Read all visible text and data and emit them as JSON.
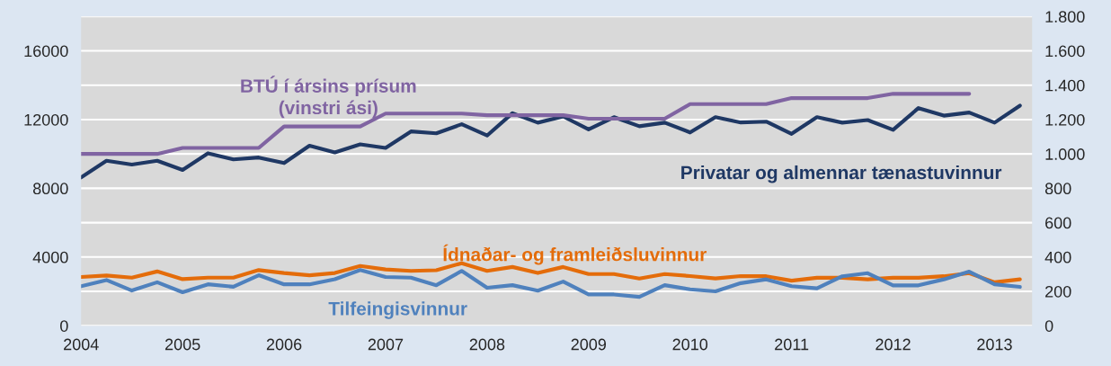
{
  "chart_data": {
    "type": "line",
    "x": [
      2004,
      2004.25,
      2004.5,
      2004.75,
      2005,
      2005.25,
      2005.5,
      2005.75,
      2006,
      2006.25,
      2006.5,
      2006.75,
      2007,
      2007.25,
      2007.5,
      2007.75,
      2008,
      2008.25,
      2008.5,
      2008.75,
      2009,
      2009.25,
      2009.5,
      2009.75,
      2010,
      2010.25,
      2010.5,
      2010.75,
      2011,
      2011.25,
      2011.5,
      2011.75,
      2012,
      2012.25,
      2012.5,
      2012.75,
      2013,
      2013.25
    ],
    "series": [
      {
        "name": "BTÚ í ársins prísum\n(vinstri ási)",
        "color": "#8064a2",
        "axis": "y",
        "x": [
          2004,
          2004.25,
          2004.5,
          2004.75,
          2005,
          2005.25,
          2005.5,
          2005.75,
          2006,
          2006.25,
          2006.5,
          2006.75,
          2007,
          2007.25,
          2007.5,
          2007.75,
          2008,
          2008.25,
          2008.5,
          2008.75,
          2009,
          2009.25,
          2009.5,
          2009.75,
          2010,
          2010.25,
          2010.5,
          2010.75,
          2011,
          2011.25,
          2011.5,
          2011.75,
          2012,
          2012.25,
          2012.5,
          2012.75
        ],
        "values": [
          10000,
          10000,
          10000,
          10000,
          10350,
          10350,
          10350,
          10350,
          11600,
          11600,
          11600,
          11600,
          12350,
          12350,
          12350,
          12350,
          12250,
          12250,
          12250,
          12250,
          12050,
          12050,
          12050,
          12050,
          12900,
          12900,
          12900,
          12900,
          13250,
          13250,
          13250,
          13250,
          13500,
          13500,
          13500,
          13500
        ]
      },
      {
        "name": "Privatar og almennar tænastuvinnur",
        "color": "#1f3864",
        "axis": "y2",
        "values": [
          863,
          960,
          938,
          960,
          907,
          1004,
          968,
          979,
          947,
          1048,
          1009,
          1056,
          1035,
          1131,
          1120,
          1173,
          1107,
          1237,
          1182,
          1218,
          1143,
          1214,
          1161,
          1182,
          1125,
          1214,
          1183,
          1188,
          1117,
          1214,
          1182,
          1197,
          1140,
          1267,
          1223,
          1241,
          1182,
          1281
        ]
      },
      {
        "name": "Ídnaðar- og framleiðsluvinnur",
        "color": "#e46c0a",
        "axis": "y2",
        "values": [
          284,
          292,
          280,
          316,
          271,
          280,
          280,
          324,
          307,
          294,
          307,
          348,
          328,
          319,
          323,
          364,
          319,
          342,
          307,
          342,
          301,
          301,
          275,
          301,
          289,
          275,
          289,
          288,
          262,
          279,
          279,
          270,
          279,
          279,
          288,
          306,
          253,
          270
        ]
      },
      {
        "name": "Tilfeingisvinnur",
        "color": "#4f81bd",
        "axis": "y2",
        "values": [
          230,
          266,
          205,
          253,
          195,
          241,
          227,
          294,
          241,
          241,
          271,
          324,
          284,
          280,
          236,
          319,
          221,
          236,
          204,
          257,
          182,
          182,
          168,
          236,
          212,
          200,
          248,
          270,
          230,
          218,
          288,
          306,
          235,
          235,
          270,
          315,
          241,
          226
        ]
      }
    ],
    "xlim": [
      2004,
      2013.37
    ],
    "xticks": [
      2004,
      2005,
      2006,
      2007,
      2008,
      2009,
      2010,
      2011,
      2012,
      2013
    ],
    "ylim": [
      0,
      18000
    ],
    "yticks": [
      0,
      4000,
      8000,
      12000,
      16000
    ],
    "y2lim": [
      0,
      1800
    ],
    "y2ticks": [
      0,
      200,
      400,
      600,
      800,
      {
        "value": 1000,
        "label": "1.000"
      },
      {
        "value": 1200,
        "label": "1.200"
      },
      {
        "value": 1400,
        "label": "1.400"
      },
      {
        "value": 1600,
        "label": "1.600"
      },
      {
        "value": 1800,
        "label": "1.800"
      }
    ],
    "grid": true,
    "legend": false,
    "marker": "none",
    "line_style": "solid"
  }
}
